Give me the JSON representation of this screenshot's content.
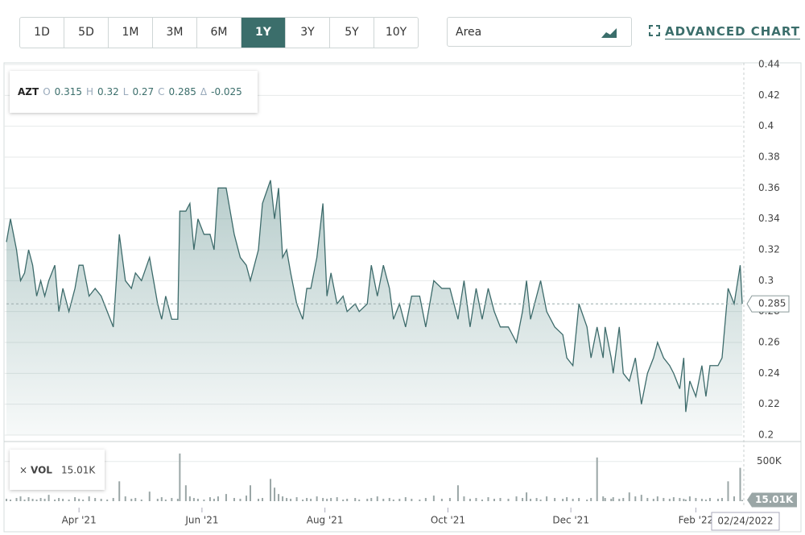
{
  "ranges": [
    "1D",
    "5D",
    "1M",
    "3M",
    "6M",
    "1Y",
    "3Y",
    "5Y",
    "10Y"
  ],
  "selected_range": "1Y",
  "chart_type_select": "Area",
  "advanced_chart": "ADVANCED CHART",
  "chart_data": {
    "type": "area",
    "symbol": "AZT",
    "color": "#3d6b6b",
    "ohlc": {
      "open_label": "O",
      "open": 0.315,
      "high_label": "H",
      "high": 0.32,
      "low_label": "L",
      "low": 0.27,
      "close_label": "C",
      "close": 0.285,
      "change_label": "Δ",
      "change": -0.025
    },
    "x": [
      0,
      2,
      5,
      7,
      9,
      11,
      13,
      15,
      17,
      19,
      21,
      24,
      26,
      28,
      31,
      34,
      36,
      38,
      41,
      44,
      47,
      50,
      53,
      56,
      59,
      62,
      64,
      67,
      71,
      75,
      77,
      79,
      82,
      85,
      86,
      89,
      91,
      93,
      95,
      98,
      101,
      103,
      105,
      109,
      113,
      116,
      119,
      121,
      125,
      127,
      131,
      133,
      135,
      137,
      139,
      141,
      144,
      147,
      149,
      151,
      154,
      157,
      159,
      161,
      164,
      167,
      169,
      173,
      175,
      179,
      181,
      184,
      187,
      190,
      192,
      195,
      198,
      201,
      205,
      208,
      212,
      216,
      220,
      224,
      227,
      230,
      233,
      236,
      239,
      242,
      245,
      249,
      253,
      256,
      258,
      260,
      263,
      265,
      268,
      272,
      276,
      278,
      281,
      284,
      288,
      290,
      293,
      296,
      297,
      300,
      301,
      304,
      306,
      309,
      312,
      315,
      318,
      321,
      323,
      326,
      329,
      331,
      334,
      336,
      337,
      339,
      342,
      345,
      347,
      349,
      353,
      355,
      358,
      361,
      364,
      365
    ],
    "values": [
      0.325,
      0.34,
      0.32,
      0.3,
      0.305,
      0.32,
      0.31,
      0.29,
      0.3,
      0.29,
      0.3,
      0.31,
      0.28,
      0.295,
      0.28,
      0.295,
      0.31,
      0.31,
      0.29,
      0.295,
      0.29,
      0.28,
      0.27,
      0.33,
      0.3,
      0.295,
      0.305,
      0.3,
      0.315,
      0.285,
      0.275,
      0.29,
      0.275,
      0.275,
      0.345,
      0.345,
      0.35,
      0.32,
      0.34,
      0.33,
      0.33,
      0.32,
      0.36,
      0.36,
      0.33,
      0.315,
      0.31,
      0.3,
      0.32,
      0.35,
      0.365,
      0.34,
      0.36,
      0.315,
      0.32,
      0.305,
      0.285,
      0.275,
      0.295,
      0.295,
      0.315,
      0.35,
      0.29,
      0.305,
      0.285,
      0.29,
      0.28,
      0.285,
      0.28,
      0.285,
      0.31,
      0.29,
      0.31,
      0.295,
      0.275,
      0.285,
      0.27,
      0.29,
      0.29,
      0.27,
      0.3,
      0.295,
      0.295,
      0.275,
      0.3,
      0.27,
      0.295,
      0.275,
      0.295,
      0.28,
      0.27,
      0.27,
      0.26,
      0.28,
      0.3,
      0.275,
      0.29,
      0.3,
      0.28,
      0.27,
      0.265,
      0.25,
      0.245,
      0.285,
      0.27,
      0.25,
      0.27,
      0.25,
      0.27,
      0.25,
      0.24,
      0.27,
      0.24,
      0.235,
      0.25,
      0.22,
      0.24,
      0.25,
      0.26,
      0.25,
      0.245,
      0.24,
      0.23,
      0.25,
      0.215,
      0.235,
      0.225,
      0.245,
      0.225,
      0.245,
      0.245,
      0.25,
      0.295,
      0.285,
      0.31,
      0.285
    ],
    "xlim": [
      0,
      365
    ],
    "xticks": [
      {
        "value": 36,
        "label": "Apr '21"
      },
      {
        "value": 97,
        "label": "Jun '21"
      },
      {
        "value": 158,
        "label": "Aug '21"
      },
      {
        "value": 219,
        "label": "Oct '21"
      },
      {
        "value": 280,
        "label": "Dec '21"
      },
      {
        "value": 342,
        "label": "Feb '22"
      }
    ],
    "last_date": "02/24/2022",
    "ylim": [
      0.2,
      0.44
    ],
    "yticks": [
      0.2,
      0.22,
      0.24,
      0.26,
      0.28,
      0.3,
      0.32,
      0.34,
      0.36,
      0.38,
      0.4,
      0.42,
      0.44
    ],
    "grid": true,
    "volume": {
      "name": "VOL",
      "color": "#9aa6a6",
      "last": 15010,
      "last_label": "15.01K",
      "values": [
        30000,
        20000,
        40000,
        60000,
        20000,
        50000,
        30000,
        20000,
        40000,
        30000,
        80000,
        20000,
        40000,
        30000,
        20000,
        50000,
        30000,
        20000,
        60000,
        40000,
        30000,
        20000,
        40000,
        250000,
        60000,
        30000,
        40000,
        20000,
        120000,
        30000,
        50000,
        20000,
        40000,
        30000,
        600000,
        200000,
        60000,
        40000,
        30000,
        20000,
        50000,
        30000,
        60000,
        90000,
        40000,
        30000,
        70000,
        200000,
        30000,
        40000,
        280000,
        170000,
        90000,
        60000,
        40000,
        30000,
        50000,
        20000,
        40000,
        30000,
        60000,
        40000,
        30000,
        40000,
        50000,
        20000,
        30000,
        40000,
        20000,
        30000,
        40000,
        60000,
        30000,
        40000,
        20000,
        30000,
        50000,
        30000,
        20000,
        40000,
        70000,
        30000,
        40000,
        200000,
        60000,
        30000,
        40000,
        20000,
        50000,
        30000,
        40000,
        30000,
        60000,
        40000,
        110000,
        30000,
        40000,
        20000,
        60000,
        40000,
        30000,
        50000,
        30000,
        40000,
        20000,
        40000,
        550000,
        60000,
        40000,
        30000,
        50000,
        30000,
        40000,
        110000,
        60000,
        80000,
        40000,
        30000,
        60000,
        40000,
        30000,
        50000,
        40000,
        30000,
        20000,
        60000,
        40000,
        30000,
        20000,
        40000,
        30000,
        40000,
        250000,
        60000,
        420000,
        15010
      ],
      "ylim": [
        0,
        700000
      ],
      "yticks": [
        {
          "value": 500000,
          "label": "500K"
        }
      ]
    }
  }
}
